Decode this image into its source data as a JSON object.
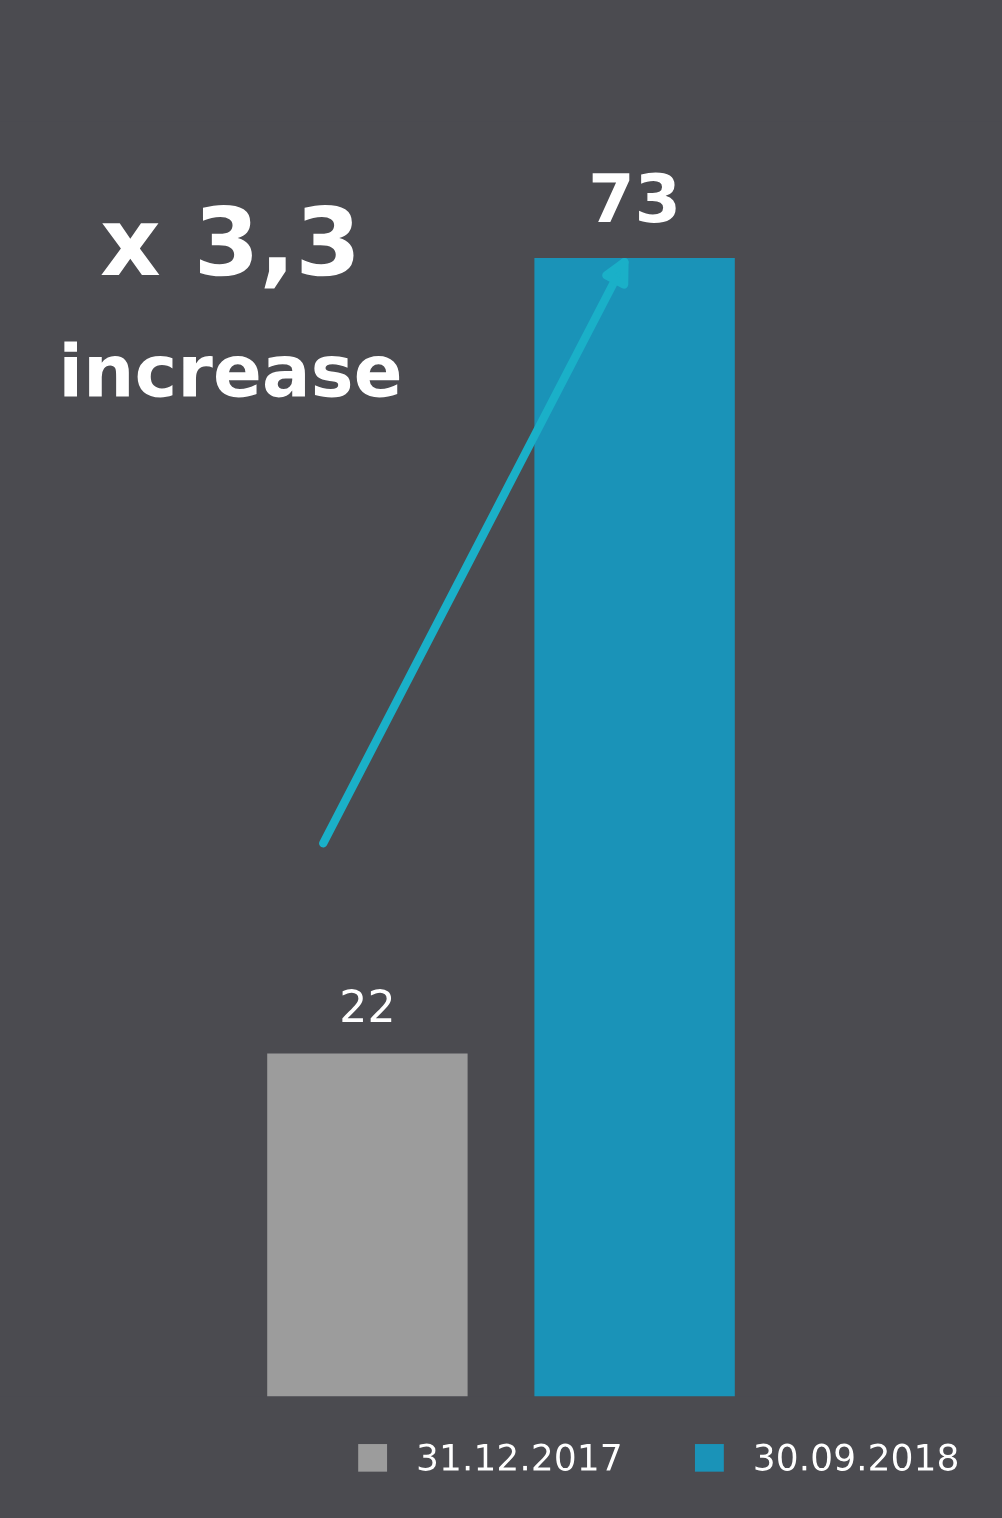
{
  "chart_data": {
    "type": "bar",
    "categories": [
      null
    ],
    "series": [
      {
        "name": "31.12.2017",
        "color": "#9c9c9c",
        "values": [
          22
        ]
      },
      {
        "name": "30.09.2018",
        "color": "#1a93b8",
        "values": [
          73
        ]
      }
    ],
    "data_labels": true,
    "annotations": [
      "x 3,3",
      "increase"
    ],
    "legend": "bottom right",
    "grid": false
  }
}
